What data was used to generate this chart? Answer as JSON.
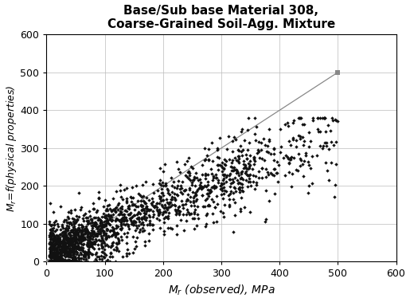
{
  "title_line1": "Base/Sub base Material 308,",
  "title_line2": "Coarse-Grained Soil-Agg. Mixture",
  "xlabel": "$M_r$ (observed), MPa",
  "ylabel": "$M_r$=f(physical properties)",
  "xlim": [
    0,
    600
  ],
  "ylim": [
    0,
    600
  ],
  "xticks": [
    0,
    100,
    200,
    300,
    400,
    500,
    600
  ],
  "yticks": [
    0,
    100,
    200,
    300,
    400,
    500,
    600
  ],
  "ref_line_x": [
    0,
    500
  ],
  "ref_line_y": [
    0,
    500
  ],
  "ref_marker_color": "#888888",
  "scatter_color": "#111111",
  "background_color": "#ffffff",
  "seed": 7,
  "n_points": 1800,
  "title_fontsize": 11,
  "label_fontsize": 10,
  "tick_fontsize": 9
}
